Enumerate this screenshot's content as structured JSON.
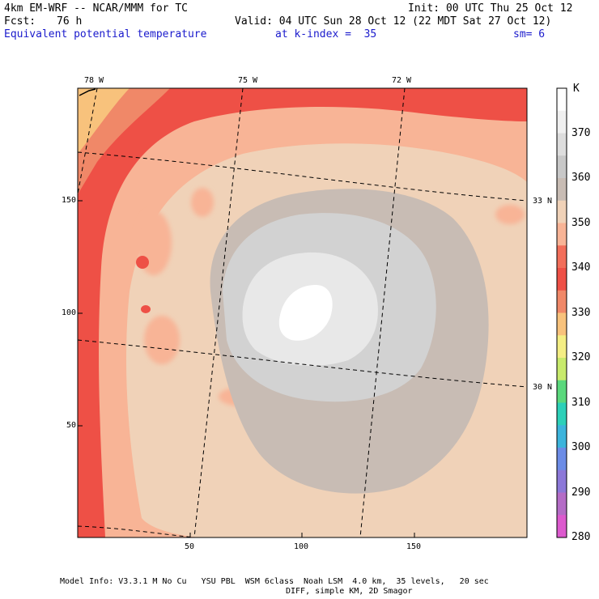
{
  "header": {
    "model": "4km EM-WRF -- NCAR/MMM for TC",
    "init": "Init: 00 UTC Thu 25 Oct 12",
    "fcst_label": "Fcst:",
    "fcst_value": "76 h",
    "valid": "Valid: 04 UTC Sun 28 Oct 12 (22 MDT Sat 27 Oct 12)",
    "field": "Equivalent potential temperature",
    "level": "at k-index =  35",
    "smoothing": "sm= 6"
  },
  "map": {
    "x_ticks": [
      "50",
      "100",
      "150"
    ],
    "y_ticks": [
      "150",
      "100",
      "50"
    ],
    "lon_labels": [
      "78 W",
      "75 W",
      "72 W"
    ],
    "lat_labels": [
      "33 N",
      "30 N"
    ]
  },
  "colorbar": {
    "unit": "K",
    "levels": [
      "370",
      "360",
      "350",
      "340",
      "330",
      "320",
      "310",
      "300",
      "290",
      "280"
    ],
    "colors": [
      "#ffffff",
      "#f0f0f0",
      "#dddddd",
      "#c8c8c8",
      "#c8bcb4",
      "#f0d2b8",
      "#f8b496",
      "#f26e5a",
      "#ee5046",
      "#f08868",
      "#f8c27c",
      "#f4ee84",
      "#c8ea6c",
      "#5ad87c",
      "#2cd0b8",
      "#3cb4dc",
      "#6c8ce6",
      "#8c78d8",
      "#b46cc6",
      "#dc5ace"
    ]
  },
  "footer": {
    "line1": "Model Info: V3.3.1 M No Cu   YSU PBL  WSM 6class  Noah LSM  4.0 km,  35 levels,   20 sec",
    "line2": "DIFF, simple KM, 2D Smagor"
  }
}
